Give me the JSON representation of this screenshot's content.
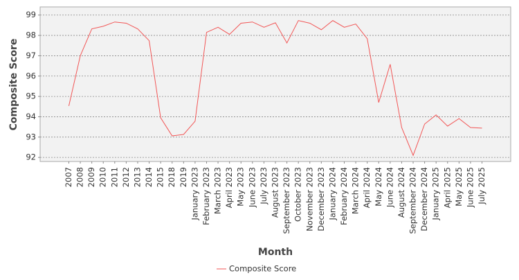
{
  "chart_data": {
    "type": "line",
    "x_label": "Month",
    "y_label": "Composite Score",
    "categories": [
      "2007",
      "2008",
      "2009",
      "2010",
      "2011",
      "2012",
      "2013",
      "2014",
      "2015",
      "2018",
      "2019",
      "January 2023",
      "February 2023",
      "March 2023",
      "April 2023",
      "May 2023",
      "June 2023",
      "July 2023",
      "August 2023",
      "September 2023",
      "October 2023",
      "November 2023",
      "December 2023",
      "January 2024",
      "February 2024",
      "March 2024",
      "April 2024",
      "May 2024",
      "June 2024",
      "August 2024",
      "September 2024",
      "December 2024",
      "January 2025",
      "April 2025",
      "May 2025",
      "June 2025",
      "July 2025"
    ],
    "series": [
      {
        "name": "Composite Score",
        "color": "#f25555",
        "values": [
          94.53,
          97.0,
          98.32,
          98.45,
          98.66,
          98.6,
          98.32,
          97.74,
          93.95,
          93.06,
          93.13,
          93.78,
          98.15,
          98.4,
          98.05,
          98.6,
          98.66,
          98.4,
          98.62,
          97.63,
          98.73,
          98.6,
          98.28,
          98.73,
          98.4,
          98.56,
          97.84,
          94.7,
          96.58,
          93.47,
          92.1,
          93.64,
          94.09,
          93.54,
          93.91,
          93.47,
          93.44
        ]
      }
    ],
    "ylim": [
      91.8,
      99.4
    ],
    "yticks": [
      92,
      93,
      94,
      95,
      96,
      97,
      98,
      99
    ],
    "grid": true,
    "legend": "bottom"
  }
}
